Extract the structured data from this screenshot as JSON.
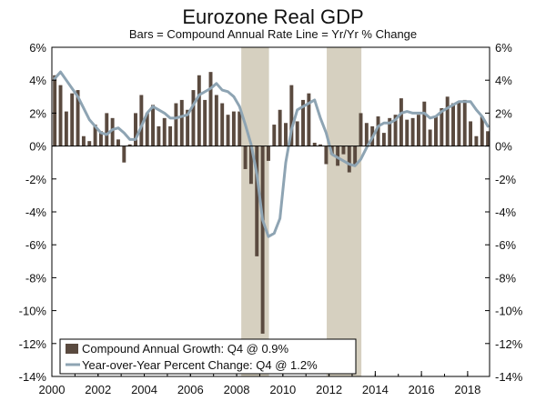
{
  "chart_data": {
    "type": "bar",
    "title": "Eurozone Real GDP",
    "subtitle": "Bars = Compound Annual Rate     Line = Yr/Yr % Change",
    "xlabel": "",
    "ylabel": "",
    "ylim": [
      -14,
      6
    ],
    "y_ticks": [
      6,
      4,
      2,
      0,
      -2,
      -4,
      -6,
      -8,
      -10,
      -12,
      -14
    ],
    "y_tick_labels": [
      "6%",
      "4%",
      "2%",
      "0%",
      "-2%",
      "-4%",
      "-6%",
      "-8%",
      "-10%",
      "-12%",
      "-14%"
    ],
    "x_tick_labels": [
      "2000",
      "2002",
      "2004",
      "2006",
      "2008",
      "2010",
      "2012",
      "2014",
      "2016",
      "2018"
    ],
    "x_range": [
      2000,
      2018.95
    ],
    "grid": false,
    "legend_position": "bottom-left",
    "recession_shading": [
      [
        2008.2,
        2009.4
      ],
      [
        2011.9,
        2013.4
      ]
    ],
    "colors": {
      "bars": "#5a4a3f",
      "line": "#8ea4b3",
      "shading": "#d6d0c0",
      "axis": "#000000"
    },
    "series": [
      {
        "name": "Compound Annual Growth: Q4 @ 0.9%",
        "kind": "bar",
        "x": [
          2000.0,
          2000.25,
          2000.5,
          2000.75,
          2001.0,
          2001.25,
          2001.5,
          2001.75,
          2002.0,
          2002.25,
          2002.5,
          2002.75,
          2003.0,
          2003.25,
          2003.5,
          2003.75,
          2004.0,
          2004.25,
          2004.5,
          2004.75,
          2005.0,
          2005.25,
          2005.5,
          2005.75,
          2006.0,
          2006.25,
          2006.5,
          2006.75,
          2007.0,
          2007.25,
          2007.5,
          2007.75,
          2008.0,
          2008.25,
          2008.5,
          2008.75,
          2009.0,
          2009.25,
          2009.5,
          2009.75,
          2010.0,
          2010.25,
          2010.5,
          2010.75,
          2011.0,
          2011.25,
          2011.5,
          2011.75,
          2012.0,
          2012.25,
          2012.5,
          2012.75,
          2013.0,
          2013.25,
          2013.5,
          2013.75,
          2014.0,
          2014.25,
          2014.5,
          2014.75,
          2015.0,
          2015.25,
          2015.5,
          2015.75,
          2016.0,
          2016.25,
          2016.5,
          2016.75,
          2017.0,
          2017.25,
          2017.5,
          2017.75,
          2018.0,
          2018.25,
          2018.5,
          2018.75
        ],
        "values": [
          4.3,
          3.7,
          2.1,
          3.2,
          3.4,
          0.6,
          0.3,
          1.3,
          0.9,
          2.0,
          1.7,
          0.4,
          -1.0,
          0.1,
          2.0,
          3.1,
          2.0,
          2.5,
          1.2,
          1.7,
          1.2,
          2.6,
          2.8,
          2.2,
          3.4,
          4.3,
          2.8,
          4.5,
          3.1,
          2.6,
          1.9,
          2.1,
          2.1,
          -1.4,
          -2.3,
          -6.7,
          -11.4,
          -0.9,
          1.3,
          2.2,
          1.4,
          3.7,
          1.5,
          2.8,
          3.2,
          0.2,
          0.1,
          -1.1,
          -0.5,
          -1.2,
          -0.5,
          -1.6,
          -1.2,
          2.0,
          1.4,
          1.2,
          1.8,
          0.8,
          1.7,
          1.9,
          2.9,
          1.6,
          1.7,
          1.9,
          2.7,
          1.0,
          1.8,
          2.3,
          3.0,
          2.6,
          2.7,
          2.8,
          1.5,
          0.6,
          1.8,
          0.9
        ]
      },
      {
        "name": "Year-over-Year Percent Change: Q4 @ 1.2%",
        "kind": "line",
        "x": [
          2000.0,
          2000.25,
          2000.5,
          2000.75,
          2001.0,
          2001.25,
          2001.5,
          2001.75,
          2002.0,
          2002.25,
          2002.5,
          2002.75,
          2003.0,
          2003.25,
          2003.5,
          2003.75,
          2004.0,
          2004.25,
          2004.5,
          2004.75,
          2005.0,
          2005.25,
          2005.5,
          2005.75,
          2006.0,
          2006.25,
          2006.5,
          2006.75,
          2007.0,
          2007.25,
          2007.5,
          2007.75,
          2008.0,
          2008.25,
          2008.5,
          2008.75,
          2009.0,
          2009.25,
          2009.5,
          2009.75,
          2010.0,
          2010.25,
          2010.5,
          2010.75,
          2011.0,
          2011.25,
          2011.5,
          2011.75,
          2012.0,
          2012.25,
          2012.5,
          2012.75,
          2013.0,
          2013.25,
          2013.5,
          2013.75,
          2014.0,
          2014.25,
          2014.5,
          2014.75,
          2015.0,
          2015.25,
          2015.5,
          2015.75,
          2016.0,
          2016.25,
          2016.5,
          2016.75,
          2017.0,
          2017.25,
          2017.5,
          2017.75,
          2018.0,
          2018.25,
          2018.5,
          2018.75
        ],
        "values": [
          4.1,
          4.5,
          4.0,
          3.5,
          3.0,
          2.3,
          1.6,
          1.2,
          0.8,
          0.7,
          1.0,
          1.1,
          0.8,
          0.4,
          0.4,
          1.2,
          2.0,
          2.4,
          2.2,
          2.0,
          1.7,
          1.7,
          1.8,
          1.9,
          2.5,
          3.1,
          3.3,
          3.5,
          3.8,
          3.4,
          3.3,
          3.0,
          2.4,
          1.3,
          0.1,
          -1.7,
          -4.5,
          -5.5,
          -5.3,
          -4.4,
          -1.0,
          1.0,
          2.2,
          2.4,
          2.6,
          2.8,
          1.7,
          0.8,
          -0.5,
          -0.7,
          -0.9,
          -1.1,
          -1.2,
          -0.8,
          -0.1,
          0.5,
          1.2,
          1.4,
          1.4,
          1.6,
          2.0,
          2.1,
          2.0,
          2.0,
          2.0,
          1.7,
          1.8,
          2.1,
          2.3,
          2.5,
          2.7,
          2.7,
          2.7,
          2.2,
          1.8,
          1.2
        ]
      }
    ]
  }
}
